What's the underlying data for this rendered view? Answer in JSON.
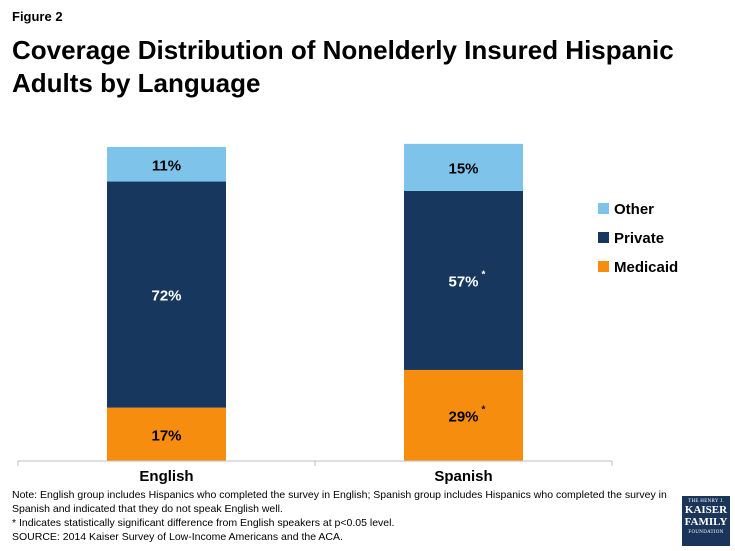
{
  "figure_label": "Figure 2",
  "title_line1": "Coverage Distribution of Nonelderly Insured Hispanic",
  "title_line2": "Adults by Language",
  "chart_data": {
    "type": "bar",
    "stacked": true,
    "categories": [
      "English",
      "Spanish"
    ],
    "series": [
      {
        "name": "Medicaid",
        "color": "#f78d0f",
        "values": [
          17,
          29
        ],
        "labels": [
          "17%",
          "29%"
        ],
        "significant": [
          false,
          true
        ]
      },
      {
        "name": "Private",
        "color": "#17375e",
        "values": [
          72,
          57
        ],
        "labels": [
          "72%",
          "57%"
        ],
        "significant": [
          false,
          true
        ]
      },
      {
        "name": "Other",
        "color": "#7ec3ea",
        "values": [
          11,
          15
        ],
        "labels": [
          "11%",
          "15%"
        ],
        "significant": [
          false,
          false
        ]
      }
    ],
    "legend_order": [
      "Other",
      "Private",
      "Medicaid"
    ],
    "legend_position": "right",
    "significance_marker": "*",
    "ylim": [
      0,
      100
    ]
  },
  "notes": {
    "line1": "Note: English group includes Hispanics who completed the survey in English; Spanish group includes Hispanics who completed the survey in Spanish and indicated that they do not speak English well.",
    "line2": "* Indicates statistically significant difference from English speakers at p<0.05 level.",
    "line3": "SOURCE: 2014 Kaiser Survey of Low-Income Americans and the ACA."
  },
  "logo": {
    "line1": "THE HENRY J.",
    "line2": "KAISER",
    "line3": "FAMILY",
    "line4": "FOUNDATION"
  }
}
